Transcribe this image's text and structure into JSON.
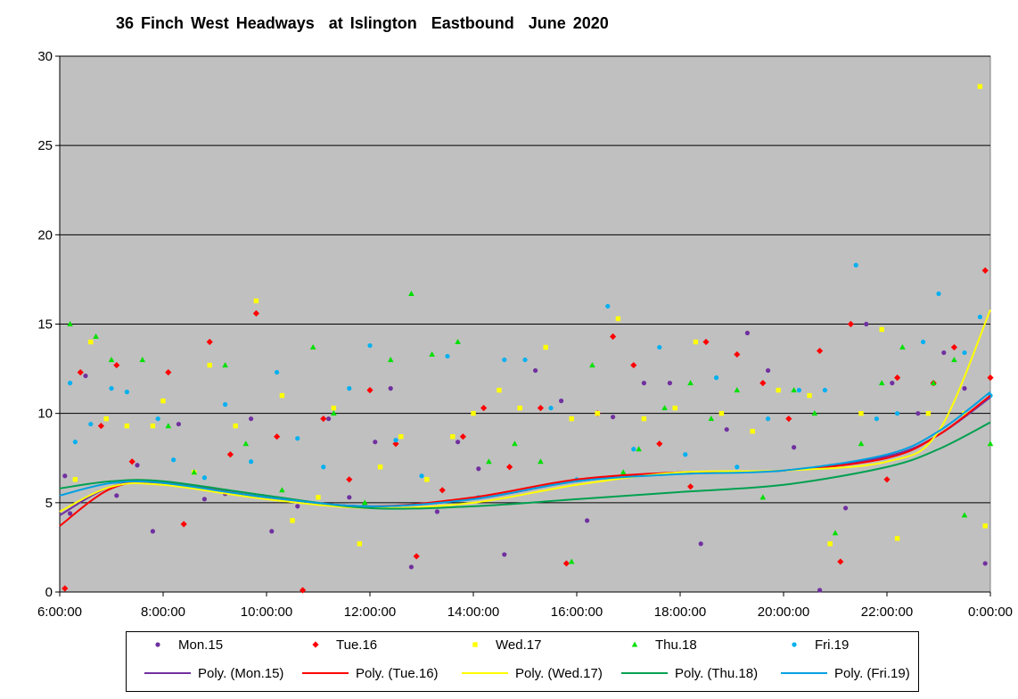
{
  "chart_data": {
    "type": "scatter",
    "title": "36 Finch West Headways  at Islington  Eastbound  June 2020",
    "xlabel": "",
    "ylabel": "",
    "x_unit": "hour of day",
    "xlim": [
      6,
      24
    ],
    "ylim": [
      0,
      30
    ],
    "x_ticks": [
      6,
      8,
      10,
      12,
      14,
      16,
      18,
      20,
      22,
      24
    ],
    "x_tick_labels": [
      "6:00:00",
      "8:00:00",
      "10:00:00",
      "12:00:00",
      "14:00:00",
      "16:00:00",
      "18:00:00",
      "20:00:00",
      "22:00:00",
      "0:00:00"
    ],
    "y_ticks": [
      0,
      5,
      10,
      15,
      20,
      25,
      30
    ],
    "y_tick_labels": [
      "0",
      "5",
      "10",
      "15",
      "20",
      "25",
      "30"
    ],
    "grid": "horizontal",
    "plot_background": "#C0C0C0",
    "legend_position": "bottom",
    "series": [
      {
        "name": "Mon.15",
        "marker": "circle",
        "color": "#7030A0",
        "points": [
          [
            6.1,
            6.5
          ],
          [
            6.2,
            4.4
          ],
          [
            6.5,
            12.1
          ],
          [
            7.1,
            5.4
          ],
          [
            7.5,
            7.1
          ],
          [
            7.8,
            3.4
          ],
          [
            8.3,
            9.4
          ],
          [
            8.8,
            5.2
          ],
          [
            9.2,
            5.5
          ],
          [
            9.7,
            9.7
          ],
          [
            10.1,
            3.4
          ],
          [
            10.6,
            4.8
          ],
          [
            11.2,
            9.7
          ],
          [
            11.6,
            5.3
          ],
          [
            12.1,
            8.4
          ],
          [
            12.4,
            11.4
          ],
          [
            12.8,
            1.4
          ],
          [
            13.3,
            4.5
          ],
          [
            13.7,
            8.4
          ],
          [
            14.1,
            6.9
          ],
          [
            14.6,
            2.1
          ],
          [
            15.2,
            12.4
          ],
          [
            15.7,
            10.7
          ],
          [
            16.2,
            4.0
          ],
          [
            16.7,
            9.8
          ],
          [
            17.3,
            11.7
          ],
          [
            17.8,
            11.7
          ],
          [
            18.4,
            2.7
          ],
          [
            18.9,
            9.1
          ],
          [
            19.3,
            14.5
          ],
          [
            19.7,
            12.4
          ],
          [
            20.2,
            8.1
          ],
          [
            20.7,
            0.1
          ],
          [
            21.2,
            4.7
          ],
          [
            21.6,
            15.0
          ],
          [
            22.1,
            11.7
          ],
          [
            22.6,
            10.0
          ],
          [
            23.1,
            13.4
          ],
          [
            23.5,
            11.4
          ],
          [
            23.9,
            1.6
          ]
        ]
      },
      {
        "name": "Tue.16",
        "marker": "diamond",
        "color": "#FF0000",
        "points": [
          [
            6.1,
            0.2
          ],
          [
            6.4,
            12.3
          ],
          [
            6.8,
            9.3
          ],
          [
            7.1,
            12.7
          ],
          [
            7.4,
            7.3
          ],
          [
            8.1,
            12.3
          ],
          [
            8.4,
            3.8
          ],
          [
            8.9,
            14.0
          ],
          [
            9.3,
            7.7
          ],
          [
            9.8,
            15.6
          ],
          [
            10.2,
            8.7
          ],
          [
            10.7,
            0.1
          ],
          [
            11.1,
            9.7
          ],
          [
            11.6,
            6.3
          ],
          [
            12.0,
            11.3
          ],
          [
            12.5,
            8.3
          ],
          [
            12.9,
            2.0
          ],
          [
            13.4,
            5.7
          ],
          [
            13.8,
            8.7
          ],
          [
            14.2,
            10.3
          ],
          [
            14.7,
            7.0
          ],
          [
            15.3,
            10.3
          ],
          [
            15.8,
            1.6
          ],
          [
            16.4,
            10.0
          ],
          [
            16.7,
            14.3
          ],
          [
            17.1,
            12.7
          ],
          [
            17.6,
            8.3
          ],
          [
            18.2,
            5.9
          ],
          [
            18.5,
            14.0
          ],
          [
            19.1,
            13.3
          ],
          [
            19.6,
            11.7
          ],
          [
            20.1,
            9.7
          ],
          [
            20.7,
            13.5
          ],
          [
            21.1,
            1.7
          ],
          [
            21.3,
            15.0
          ],
          [
            22.0,
            6.3
          ],
          [
            22.2,
            12.0
          ],
          [
            22.9,
            11.7
          ],
          [
            23.3,
            13.7
          ],
          [
            23.9,
            18.0
          ],
          [
            24.0,
            12.0
          ]
        ]
      },
      {
        "name": "Wed.17",
        "marker": "square",
        "color": "#FFFF00",
        "points": [
          [
            6.3,
            6.3
          ],
          [
            6.6,
            14.0
          ],
          [
            6.9,
            9.7
          ],
          [
            7.3,
            9.3
          ],
          [
            7.8,
            9.3
          ],
          [
            8.0,
            10.7
          ],
          [
            8.6,
            6.7
          ],
          [
            8.9,
            12.7
          ],
          [
            9.4,
            9.3
          ],
          [
            9.8,
            16.3
          ],
          [
            10.3,
            11.0
          ],
          [
            10.5,
            4.0
          ],
          [
            11.0,
            5.3
          ],
          [
            11.3,
            10.3
          ],
          [
            11.8,
            2.7
          ],
          [
            12.2,
            7.0
          ],
          [
            12.6,
            8.7
          ],
          [
            13.1,
            6.3
          ],
          [
            13.6,
            8.7
          ],
          [
            14.0,
            10.0
          ],
          [
            14.5,
            11.3
          ],
          [
            14.9,
            10.3
          ],
          [
            15.4,
            13.7
          ],
          [
            15.9,
            9.7
          ],
          [
            16.4,
            10.0
          ],
          [
            16.8,
            15.3
          ],
          [
            17.3,
            9.7
          ],
          [
            17.9,
            10.3
          ],
          [
            18.3,
            14.0
          ],
          [
            18.8,
            10.0
          ],
          [
            19.4,
            9.0
          ],
          [
            19.9,
            11.3
          ],
          [
            20.5,
            11.0
          ],
          [
            20.9,
            2.7
          ],
          [
            21.5,
            10.0
          ],
          [
            21.9,
            14.7
          ],
          [
            22.2,
            3.0
          ],
          [
            22.8,
            10.0
          ],
          [
            23.5,
            10.0
          ],
          [
            23.8,
            28.3
          ],
          [
            23.9,
            3.7
          ]
        ]
      },
      {
        "name": "Thu.18",
        "marker": "triangle",
        "color": "#00E000",
        "points": [
          [
            6.2,
            15.0
          ],
          [
            6.7,
            14.3
          ],
          [
            7.0,
            13.0
          ],
          [
            7.6,
            13.0
          ],
          [
            8.1,
            9.3
          ],
          [
            8.6,
            6.7
          ],
          [
            9.2,
            12.7
          ],
          [
            9.6,
            8.3
          ],
          [
            10.3,
            5.7
          ],
          [
            10.9,
            13.7
          ],
          [
            11.3,
            10.0
          ],
          [
            11.9,
            5.0
          ],
          [
            12.4,
            13.0
          ],
          [
            12.8,
            16.7
          ],
          [
            13.2,
            13.3
          ],
          [
            13.7,
            14.0
          ],
          [
            14.3,
            7.3
          ],
          [
            14.8,
            8.3
          ],
          [
            15.3,
            7.3
          ],
          [
            15.9,
            1.7
          ],
          [
            16.3,
            12.7
          ],
          [
            16.9,
            6.7
          ],
          [
            17.2,
            8.0
          ],
          [
            17.7,
            10.3
          ],
          [
            18.2,
            11.7
          ],
          [
            18.6,
            9.7
          ],
          [
            19.1,
            11.3
          ],
          [
            19.6,
            5.3
          ],
          [
            20.2,
            11.3
          ],
          [
            20.6,
            10.0
          ],
          [
            21.0,
            3.3
          ],
          [
            21.5,
            8.3
          ],
          [
            21.9,
            11.7
          ],
          [
            22.3,
            13.7
          ],
          [
            22.9,
            11.7
          ],
          [
            23.3,
            13.0
          ],
          [
            23.5,
            4.3
          ],
          [
            24.0,
            8.3
          ]
        ]
      },
      {
        "name": "Fri.19",
        "marker": "circle",
        "color": "#00B0F0",
        "points": [
          [
            6.2,
            11.7
          ],
          [
            6.3,
            8.4
          ],
          [
            6.6,
            9.4
          ],
          [
            7.0,
            11.4
          ],
          [
            7.3,
            11.2
          ],
          [
            7.9,
            9.7
          ],
          [
            8.2,
            7.4
          ],
          [
            8.8,
            6.4
          ],
          [
            9.2,
            10.5
          ],
          [
            9.7,
            7.3
          ],
          [
            10.2,
            12.3
          ],
          [
            10.6,
            8.6
          ],
          [
            11.1,
            7.0
          ],
          [
            11.6,
            11.4
          ],
          [
            12.0,
            13.8
          ],
          [
            12.5,
            8.5
          ],
          [
            13.0,
            6.5
          ],
          [
            13.5,
            13.2
          ],
          [
            14.1,
            5.3
          ],
          [
            14.6,
            13.0
          ],
          [
            15.0,
            13.0
          ],
          [
            15.5,
            10.3
          ],
          [
            16.0,
            6.3
          ],
          [
            16.6,
            16.0
          ],
          [
            17.1,
            8.0
          ],
          [
            17.6,
            13.7
          ],
          [
            18.1,
            7.7
          ],
          [
            18.7,
            12.0
          ],
          [
            19.1,
            7.0
          ],
          [
            19.7,
            9.7
          ],
          [
            20.3,
            11.3
          ],
          [
            20.8,
            11.3
          ],
          [
            21.4,
            18.3
          ],
          [
            21.8,
            9.7
          ],
          [
            22.2,
            10.0
          ],
          [
            22.7,
            14.0
          ],
          [
            23.0,
            16.7
          ],
          [
            23.5,
            13.4
          ],
          [
            23.8,
            15.4
          ],
          [
            24.0,
            11.0
          ]
        ]
      }
    ],
    "trendlines": {
      "x": [
        6,
        7,
        8,
        10,
        12,
        14,
        16,
        18,
        20,
        22,
        23,
        24
      ],
      "series": [
        {
          "name": "Poly. (Mon.15)",
          "color": "#7030A0",
          "values": [
            4.3,
            5.9,
            6.1,
            5.3,
            4.8,
            5.2,
            6.2,
            6.7,
            6.8,
            7.6,
            8.8,
            10.9
          ]
        },
        {
          "name": "Poly. (Tue.16)",
          "color": "#FF0000",
          "values": [
            3.7,
            5.8,
            6.1,
            5.3,
            4.8,
            5.3,
            6.3,
            6.7,
            6.8,
            7.5,
            8.8,
            11.0
          ]
        },
        {
          "name": "Poly. (Wed.17)",
          "color": "#FFFF00",
          "values": [
            4.5,
            5.9,
            6.0,
            5.2,
            4.7,
            5.0,
            6.0,
            6.7,
            6.8,
            7.3,
            9.0,
            15.8
          ]
        },
        {
          "name": "Poly. (Thu.18)",
          "color": "#00A050",
          "values": [
            5.8,
            6.2,
            6.2,
            5.4,
            4.7,
            4.8,
            5.2,
            5.6,
            6.0,
            7.0,
            8.0,
            9.5
          ]
        },
        {
          "name": "Poly. (Fri.19)",
          "color": "#00A0E0",
          "values": [
            5.4,
            6.1,
            6.1,
            5.3,
            4.8,
            5.2,
            6.2,
            6.6,
            6.8,
            7.7,
            9.0,
            11.2
          ]
        }
      ]
    }
  }
}
